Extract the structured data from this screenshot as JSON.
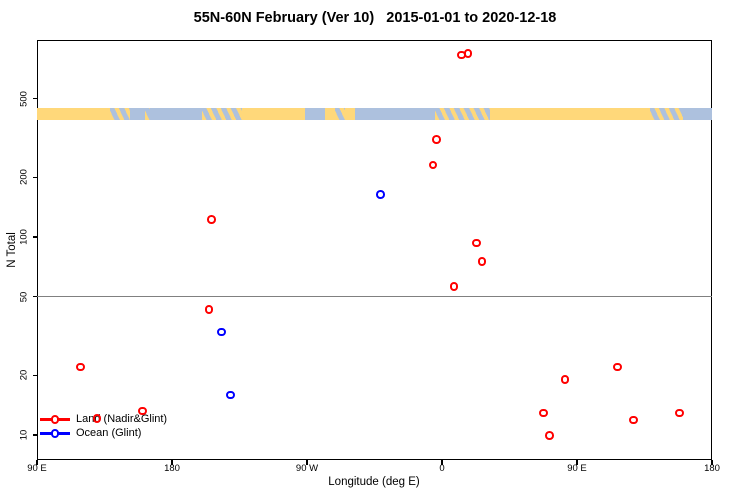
{
  "chart_data": {
    "type": "scatter",
    "title": "55N-60N February (Ver 10)   2015-01-01 to 2020-12-18",
    "xlabel": "Longitude (deg E)",
    "ylabel": "N Total",
    "x_axis": {
      "note": "longitude axis spanning 450 degrees, starting at 90E and wrapping past the dateline; ticks equally spaced",
      "tick_labels": [
        "90 E",
        "180",
        "90 W",
        "0",
        "90 E",
        "180"
      ],
      "tick_positions_deg": [
        0,
        90,
        180,
        270,
        360,
        450
      ],
      "range_deg": [
        0,
        450
      ]
    },
    "y_axis": {
      "scale": "log10",
      "tick_labels": [
        "10",
        "20",
        "50",
        "100",
        "200",
        "500"
      ],
      "tick_values": [
        10,
        20,
        50,
        100,
        200,
        500
      ],
      "approx_range": [
        7.5,
        990
      ]
    },
    "reference_line_y": 50,
    "legend": {
      "position": "bottom-left",
      "entries": [
        {
          "label": "Land (Nadir&Glint)",
          "color": "#ff0000",
          "marker": "open-circle-on-line"
        },
        {
          "label": "Ocean (Glint)",
          "color": "#0000ff",
          "marker": "open-circle-on-line"
        }
      ]
    },
    "series": [
      {
        "name": "Land (Nadir&Glint)",
        "color": "#ff0000",
        "points": [
          {
            "x_deg": 283.0,
            "n": 830
          },
          {
            "x_deg": 287.5,
            "n": 845
          },
          {
            "x_deg": 266.5,
            "n": 310
          },
          {
            "x_deg": 264.0,
            "n": 230
          },
          {
            "x_deg": 116.3,
            "n": 122
          },
          {
            "x_deg": 293.3,
            "n": 93
          },
          {
            "x_deg": 296.7,
            "n": 75
          },
          {
            "x_deg": 278.2,
            "n": 56
          },
          {
            "x_deg": 114.7,
            "n": 43
          },
          {
            "x_deg": 29.0,
            "n": 22
          },
          {
            "x_deg": 387.3,
            "n": 22
          },
          {
            "x_deg": 352.2,
            "n": 19
          },
          {
            "x_deg": 70.5,
            "n": 13.2
          },
          {
            "x_deg": 428.5,
            "n": 12.9
          },
          {
            "x_deg": 337.8,
            "n": 12.9
          },
          {
            "x_deg": 40.0,
            "n": 12.1
          },
          {
            "x_deg": 397.8,
            "n": 11.9
          },
          {
            "x_deg": 341.8,
            "n": 9.9
          }
        ]
      },
      {
        "name": "Ocean (Glint)",
        "color": "#0000ff",
        "points": [
          {
            "x_deg": 229.1,
            "n": 164
          },
          {
            "x_deg": 123.0,
            "n": 33
          },
          {
            "x_deg": 129.1,
            "n": 15.9
          }
        ]
      }
    ],
    "map_strip": {
      "description": "land/ocean map band for the 55N-60N latitude zone drawn across the plot",
      "land_color": "#ffd87a",
      "ocean_color": "#adc1de",
      "segments": [
        {
          "from": 0.0,
          "to": 0.108,
          "type": "land"
        },
        {
          "from": 0.108,
          "to": 0.138,
          "type": "mix"
        },
        {
          "from": 0.138,
          "to": 0.16,
          "type": "ocean"
        },
        {
          "from": 0.16,
          "to": 0.168,
          "type": "mix"
        },
        {
          "from": 0.168,
          "to": 0.244,
          "type": "ocean"
        },
        {
          "from": 0.244,
          "to": 0.304,
          "type": "mix"
        },
        {
          "from": 0.304,
          "to": 0.397,
          "type": "land"
        },
        {
          "from": 0.397,
          "to": 0.427,
          "type": "ocean"
        },
        {
          "from": 0.427,
          "to": 0.441,
          "type": "land"
        },
        {
          "from": 0.441,
          "to": 0.456,
          "type": "mix"
        },
        {
          "from": 0.456,
          "to": 0.471,
          "type": "land"
        },
        {
          "from": 0.471,
          "to": 0.59,
          "type": "ocean"
        },
        {
          "from": 0.59,
          "to": 0.671,
          "type": "mix"
        },
        {
          "from": 0.671,
          "to": 0.908,
          "type": "land"
        },
        {
          "from": 0.908,
          "to": 0.957,
          "type": "mix"
        },
        {
          "from": 0.957,
          "to": 1.0,
          "type": "ocean"
        }
      ]
    }
  }
}
